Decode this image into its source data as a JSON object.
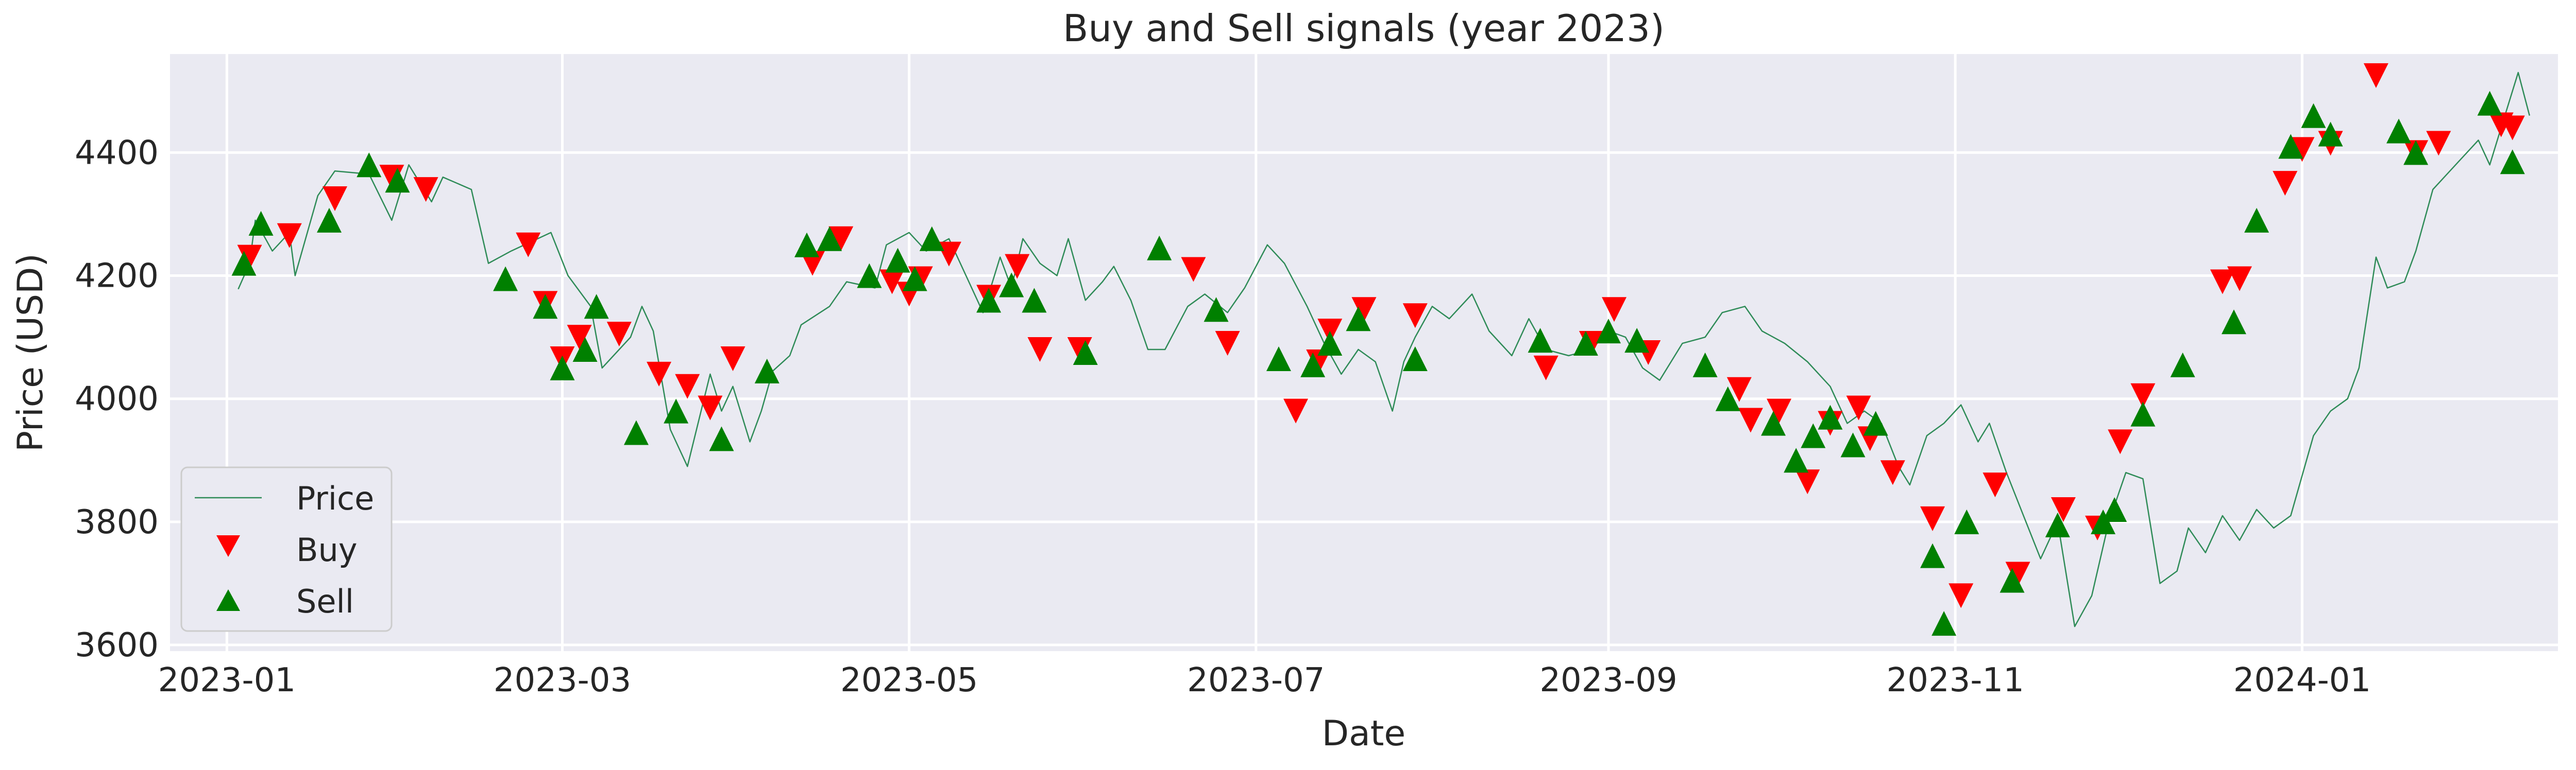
{
  "chart_data": {
    "type": "line",
    "title": "Buy and Sell signals (year 2023)",
    "xlabel": "Date",
    "ylabel": "Price (USD)",
    "xlim": [
      "2022-12-22",
      "2024-02-15"
    ],
    "ylim": [
      3590,
      4560
    ],
    "x_ticks": [
      "2023-01",
      "2023-03",
      "2023-05",
      "2023-07",
      "2023-09",
      "2023-11",
      "2024-01"
    ],
    "y_ticks": [
      3600,
      3800,
      4000,
      4200,
      4400
    ],
    "grid": true,
    "legend_position": "lower-left",
    "colors": {
      "background": "#eaeaf2",
      "grid": "#ffffff",
      "price_line": "#2e8b57",
      "buy": "#ff0000",
      "sell": "#008000"
    },
    "series": [
      {
        "name": "Price",
        "kind": "line",
        "points": [
          [
            "2023-01-03",
            4178
          ],
          [
            "2023-01-05",
            4220
          ],
          [
            "2023-01-06",
            4290
          ],
          [
            "2023-01-09",
            4240
          ],
          [
            "2023-01-12",
            4270
          ],
          [
            "2023-01-13",
            4200
          ],
          [
            "2023-01-17",
            4330
          ],
          [
            "2023-01-20",
            4370
          ],
          [
            "2023-01-26",
            4365
          ],
          [
            "2023-01-30",
            4290
          ],
          [
            "2023-02-02",
            4380
          ],
          [
            "2023-02-06",
            4320
          ],
          [
            "2023-02-08",
            4360
          ],
          [
            "2023-02-13",
            4340
          ],
          [
            "2023-02-16",
            4220
          ],
          [
            "2023-02-20",
            4240
          ],
          [
            "2023-02-27",
            4270
          ],
          [
            "2023-03-02",
            4200
          ],
          [
            "2023-03-06",
            4150
          ],
          [
            "2023-03-08",
            4050
          ],
          [
            "2023-03-10",
            4070
          ],
          [
            "2023-03-13",
            4100
          ],
          [
            "2023-03-15",
            4150
          ],
          [
            "2023-03-17",
            4110
          ],
          [
            "2023-03-20",
            3950
          ],
          [
            "2023-03-23",
            3890
          ],
          [
            "2023-03-27",
            4040
          ],
          [
            "2023-03-29",
            3980
          ],
          [
            "2023-03-31",
            4020
          ],
          [
            "2023-04-03",
            3930
          ],
          [
            "2023-04-05",
            3980
          ],
          [
            "2023-04-07",
            4045
          ],
          [
            "2023-04-10",
            4070
          ],
          [
            "2023-04-12",
            4120
          ],
          [
            "2023-04-17",
            4150
          ],
          [
            "2023-04-20",
            4190
          ],
          [
            "2023-04-25",
            4180
          ],
          [
            "2023-04-27",
            4250
          ],
          [
            "2023-05-01",
            4270
          ],
          [
            "2023-05-04",
            4240
          ],
          [
            "2023-05-08",
            4260
          ],
          [
            "2023-05-11",
            4200
          ],
          [
            "2023-05-14",
            4140
          ],
          [
            "2023-05-17",
            4230
          ],
          [
            "2023-05-19",
            4180
          ],
          [
            "2023-05-21",
            4260
          ],
          [
            "2023-05-24",
            4220
          ],
          [
            "2023-05-27",
            4200
          ],
          [
            "2023-05-29",
            4260
          ],
          [
            "2023-06-01",
            4160
          ],
          [
            "2023-06-04",
            4190
          ],
          [
            "2023-06-06",
            4215
          ],
          [
            "2023-06-09",
            4160
          ],
          [
            "2023-06-12",
            4080
          ],
          [
            "2023-06-15",
            4080
          ],
          [
            "2023-06-19",
            4150
          ],
          [
            "2023-06-22",
            4170
          ],
          [
            "2023-06-26",
            4140
          ],
          [
            "2023-06-29",
            4180
          ],
          [
            "2023-07-03",
            4250
          ],
          [
            "2023-07-06",
            4220
          ],
          [
            "2023-07-10",
            4150
          ],
          [
            "2023-07-13",
            4090
          ],
          [
            "2023-07-16",
            4040
          ],
          [
            "2023-07-19",
            4080
          ],
          [
            "2023-07-22",
            4060
          ],
          [
            "2023-07-25",
            3980
          ],
          [
            "2023-07-27",
            4060
          ],
          [
            "2023-07-29",
            4100
          ],
          [
            "2023-08-01",
            4150
          ],
          [
            "2023-08-04",
            4130
          ],
          [
            "2023-08-08",
            4170
          ],
          [
            "2023-08-11",
            4110
          ],
          [
            "2023-08-15",
            4070
          ],
          [
            "2023-08-18",
            4130
          ],
          [
            "2023-08-21",
            4080
          ],
          [
            "2023-08-25",
            4070
          ],
          [
            "2023-08-29",
            4080
          ],
          [
            "2023-09-01",
            4110
          ],
          [
            "2023-09-04",
            4100
          ],
          [
            "2023-09-07",
            4050
          ],
          [
            "2023-09-10",
            4030
          ],
          [
            "2023-09-14",
            4090
          ],
          [
            "2023-09-18",
            4100
          ],
          [
            "2023-09-21",
            4140
          ],
          [
            "2023-09-25",
            4150
          ],
          [
            "2023-09-28",
            4110
          ],
          [
            "2023-10-02",
            4090
          ],
          [
            "2023-10-06",
            4060
          ],
          [
            "2023-10-10",
            4020
          ],
          [
            "2023-10-13",
            3960
          ],
          [
            "2023-10-16",
            3980
          ],
          [
            "2023-10-19",
            3960
          ],
          [
            "2023-10-22",
            3890
          ],
          [
            "2023-10-24",
            3860
          ],
          [
            "2023-10-27",
            3940
          ],
          [
            "2023-10-30",
            3960
          ],
          [
            "2023-11-02",
            3990
          ],
          [
            "2023-11-05",
            3930
          ],
          [
            "2023-11-07",
            3960
          ],
          [
            "2023-11-10",
            3880
          ],
          [
            "2023-11-13",
            3810
          ],
          [
            "2023-11-16",
            3740
          ],
          [
            "2023-11-19",
            3800
          ],
          [
            "2023-11-22",
            3630
          ],
          [
            "2023-11-25",
            3680
          ],
          [
            "2023-11-28",
            3800
          ],
          [
            "2023-12-01",
            3880
          ],
          [
            "2023-12-04",
            3870
          ],
          [
            "2023-12-07",
            3700
          ],
          [
            "2023-12-10",
            3720
          ],
          [
            "2023-12-12",
            3790
          ],
          [
            "2023-12-15",
            3750
          ],
          [
            "2023-12-18",
            3810
          ],
          [
            "2023-12-21",
            3770
          ],
          [
            "2023-12-24",
            3820
          ],
          [
            "2023-12-27",
            3790
          ],
          [
            "2023-12-30",
            3810
          ],
          [
            "2024-01-03",
            3940
          ],
          [
            "2024-01-06",
            3980
          ],
          [
            "2024-01-09",
            4000
          ],
          [
            "2024-01-11",
            4050
          ],
          [
            "2024-01-14",
            4230
          ],
          [
            "2024-01-16",
            4180
          ],
          [
            "2024-01-19",
            4190
          ],
          [
            "2024-01-21",
            4240
          ],
          [
            "2024-01-24",
            4340
          ],
          [
            "2024-01-27",
            4370
          ],
          [
            "2024-01-30",
            4400
          ],
          [
            "2024-02-01",
            4420
          ],
          [
            "2024-02-03",
            4380
          ],
          [
            "2024-02-05",
            4440
          ],
          [
            "2024-02-08",
            4530
          ],
          [
            "2024-02-10",
            4460
          ]
        ]
      },
      {
        "name": "Buy",
        "kind": "marker-down",
        "points": [
          [
            "2023-01-05",
            4230
          ],
          [
            "2023-01-12",
            4265
          ],
          [
            "2023-01-20",
            4325
          ],
          [
            "2023-01-30",
            4360
          ],
          [
            "2023-02-05",
            4340
          ],
          [
            "2023-02-23",
            4250
          ],
          [
            "2023-02-26",
            4155
          ],
          [
            "2023-03-01",
            4065
          ],
          [
            "2023-03-04",
            4100
          ],
          [
            "2023-03-11",
            4105
          ],
          [
            "2023-03-18",
            4040
          ],
          [
            "2023-03-23",
            4020
          ],
          [
            "2023-03-27",
            3985
          ],
          [
            "2023-03-31",
            4065
          ],
          [
            "2023-04-14",
            4220
          ],
          [
            "2023-04-19",
            4260
          ],
          [
            "2023-04-28",
            4190
          ],
          [
            "2023-05-01",
            4170
          ],
          [
            "2023-05-03",
            4195
          ],
          [
            "2023-05-08",
            4235
          ],
          [
            "2023-05-15",
            4165
          ],
          [
            "2023-05-20",
            4215
          ],
          [
            "2023-05-24",
            4080
          ],
          [
            "2023-05-31",
            4080
          ],
          [
            "2023-06-20",
            4210
          ],
          [
            "2023-06-26",
            4090
          ],
          [
            "2023-07-08",
            3980
          ],
          [
            "2023-07-12",
            4060
          ],
          [
            "2023-07-14",
            4110
          ],
          [
            "2023-07-20",
            4145
          ],
          [
            "2023-07-29",
            4135
          ],
          [
            "2023-08-21",
            4050
          ],
          [
            "2023-08-29",
            4090
          ],
          [
            "2023-09-02",
            4145
          ],
          [
            "2023-09-08",
            4075
          ],
          [
            "2023-09-24",
            4015
          ],
          [
            "2023-09-26",
            3965
          ],
          [
            "2023-10-01",
            3980
          ],
          [
            "2023-10-06",
            3865
          ],
          [
            "2023-10-10",
            3960
          ],
          [
            "2023-10-15",
            3985
          ],
          [
            "2023-10-17",
            3935
          ],
          [
            "2023-10-21",
            3880
          ],
          [
            "2023-10-28",
            3805
          ],
          [
            "2023-11-02",
            3680
          ],
          [
            "2023-11-08",
            3860
          ],
          [
            "2023-11-12",
            3715
          ],
          [
            "2023-11-20",
            3820
          ],
          [
            "2023-11-26",
            3790
          ],
          [
            "2023-11-30",
            3930
          ],
          [
            "2023-12-04",
            4005
          ],
          [
            "2023-12-18",
            4190
          ],
          [
            "2023-12-21",
            4195
          ],
          [
            "2023-12-29",
            4350
          ],
          [
            "2024-01-01",
            4405
          ],
          [
            "2024-01-06",
            4415
          ],
          [
            "2024-01-14",
            4525
          ],
          [
            "2024-01-21",
            4400
          ],
          [
            "2024-01-25",
            4415
          ],
          [
            "2024-02-05",
            4445
          ],
          [
            "2024-02-07",
            4440
          ]
        ]
      },
      {
        "name": "Sell",
        "kind": "marker-up",
        "points": [
          [
            "2023-01-04",
            4220
          ],
          [
            "2023-01-07",
            4285
          ],
          [
            "2023-01-19",
            4290
          ],
          [
            "2023-01-26",
            4380
          ],
          [
            "2023-01-31",
            4355
          ],
          [
            "2023-02-19",
            4195
          ],
          [
            "2023-02-26",
            4150
          ],
          [
            "2023-03-01",
            4050
          ],
          [
            "2023-03-05",
            4080
          ],
          [
            "2023-03-07",
            4150
          ],
          [
            "2023-03-14",
            3945
          ],
          [
            "2023-03-21",
            3980
          ],
          [
            "2023-03-29",
            3935
          ],
          [
            "2023-04-06",
            4045
          ],
          [
            "2023-04-13",
            4250
          ],
          [
            "2023-04-17",
            4260
          ],
          [
            "2023-04-24",
            4200
          ],
          [
            "2023-04-29",
            4225
          ],
          [
            "2023-05-02",
            4195
          ],
          [
            "2023-05-05",
            4260
          ],
          [
            "2023-05-15",
            4160
          ],
          [
            "2023-05-19",
            4185
          ],
          [
            "2023-05-23",
            4160
          ],
          [
            "2023-06-01",
            4075
          ],
          [
            "2023-06-14",
            4245
          ],
          [
            "2023-06-24",
            4145
          ],
          [
            "2023-07-05",
            4065
          ],
          [
            "2023-07-11",
            4055
          ],
          [
            "2023-07-14",
            4090
          ],
          [
            "2023-07-19",
            4130
          ],
          [
            "2023-07-29",
            4065
          ],
          [
            "2023-08-20",
            4095
          ],
          [
            "2023-08-28",
            4090
          ],
          [
            "2023-09-01",
            4110
          ],
          [
            "2023-09-06",
            4095
          ],
          [
            "2023-09-18",
            4055
          ],
          [
            "2023-09-22",
            4000
          ],
          [
            "2023-09-30",
            3960
          ],
          [
            "2023-10-04",
            3900
          ],
          [
            "2023-10-07",
            3940
          ],
          [
            "2023-10-10",
            3970
          ],
          [
            "2023-10-14",
            3925
          ],
          [
            "2023-10-18",
            3960
          ],
          [
            "2023-10-28",
            3745
          ],
          [
            "2023-10-30",
            3635
          ],
          [
            "2023-11-03",
            3800
          ],
          [
            "2023-11-11",
            3705
          ],
          [
            "2023-11-19",
            3795
          ],
          [
            "2023-11-27",
            3800
          ],
          [
            "2023-11-29",
            3820
          ],
          [
            "2023-12-04",
            3975
          ],
          [
            "2023-12-11",
            4055
          ],
          [
            "2023-12-20",
            4125
          ],
          [
            "2023-12-24",
            4290
          ],
          [
            "2023-12-30",
            4410
          ],
          [
            "2024-01-03",
            4460
          ],
          [
            "2024-01-06",
            4430
          ],
          [
            "2024-01-18",
            4435
          ],
          [
            "2024-01-21",
            4400
          ],
          [
            "2024-02-03",
            4480
          ],
          [
            "2024-02-07",
            4385
          ]
        ]
      }
    ]
  }
}
